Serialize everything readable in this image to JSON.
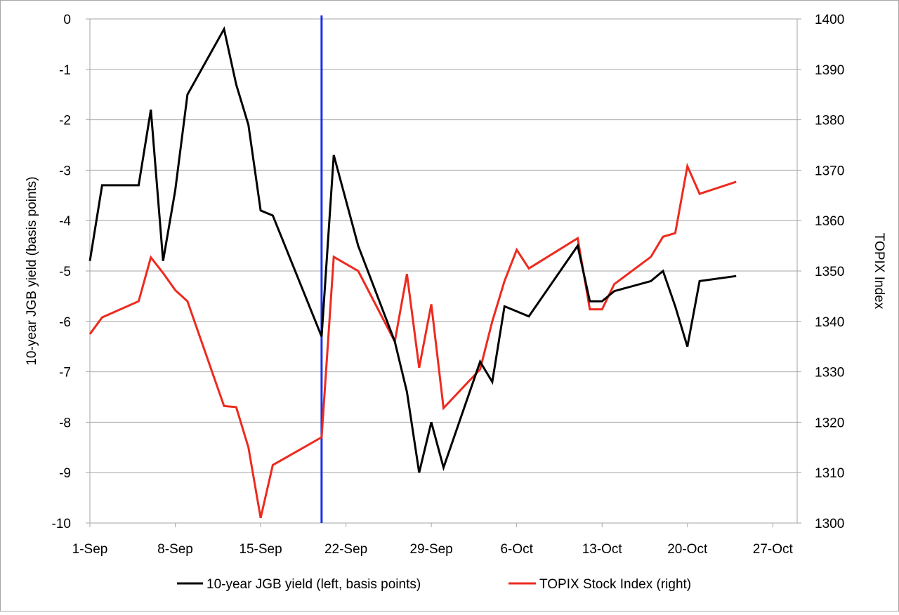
{
  "chart_data": {
    "type": "line",
    "title": "",
    "xlabel": "",
    "ylabel_left": "10-year JGB yield (basis points)",
    "ylabel_right": "TOPIX Index",
    "x_tick_labels": [
      "1-Sep",
      "8-Sep",
      "15-Sep",
      "22-Sep",
      "29-Sep",
      "6-Oct",
      "13-Oct",
      "20-Oct",
      "27-Oct"
    ],
    "xlim": [
      "1-Sep",
      "29-Oct"
    ],
    "ylim_left": [
      -10,
      0
    ],
    "ylim_right": [
      1300,
      1400
    ],
    "y_left_ticks": [
      "0",
      "-1",
      "-2",
      "-3",
      "-4",
      "-5",
      "-6",
      "-7",
      "-8",
      "-9",
      "-10"
    ],
    "y_right_ticks": [
      "1400",
      "1390",
      "1380",
      "1370",
      "1360",
      "1350",
      "1340",
      "1330",
      "1320",
      "1310",
      "1300"
    ],
    "grid": "horizontal",
    "legend_position": "bottom",
    "vertical_marker": {
      "x": "20-Sep",
      "color": "#1a32e6"
    },
    "series": [
      {
        "name": "10-year JGB yield (left, basis points)",
        "axis": "left",
        "color": "#000000",
        "points": [
          [
            "1-Sep",
            -4.8
          ],
          [
            "2-Sep",
            -3.3
          ],
          [
            "5-Sep",
            -3.3
          ],
          [
            "6-Sep",
            -1.8
          ],
          [
            "7-Sep",
            -4.8
          ],
          [
            "8-Sep",
            -3.4
          ],
          [
            "9-Sep",
            -1.5
          ],
          [
            "12-Sep",
            -0.2
          ],
          [
            "13-Sep",
            -1.3
          ],
          [
            "14-Sep",
            -2.1
          ],
          [
            "15-Sep",
            -3.8
          ],
          [
            "16-Sep",
            -3.9
          ],
          [
            "20-Sep",
            -6.3
          ],
          [
            "21-Sep",
            -2.7
          ],
          [
            "23-Sep",
            -4.5
          ],
          [
            "26-Sep",
            -6.4
          ],
          [
            "27-Sep",
            -7.4
          ],
          [
            "28-Sep",
            -9.0
          ],
          [
            "29-Sep",
            -8.0
          ],
          [
            "30-Sep",
            -8.9
          ],
          [
            "3-Oct",
            -6.8
          ],
          [
            "4-Oct",
            -7.2
          ],
          [
            "5-Oct",
            -5.7
          ],
          [
            "7-Oct",
            -5.9
          ],
          [
            "11-Oct",
            -4.5
          ],
          [
            "12-Oct",
            -5.6
          ],
          [
            "13-Oct",
            -5.6
          ],
          [
            "14-Oct",
            -5.4
          ],
          [
            "17-Oct",
            -5.2
          ],
          [
            "18-Oct",
            -5.0
          ],
          [
            "19-Oct",
            -5.7
          ],
          [
            "20-Oct",
            -6.5
          ],
          [
            "21-Oct",
            -5.2
          ],
          [
            "24-Oct",
            -5.1
          ]
        ]
      },
      {
        "name": "TOPIX Stock Index (right)",
        "axis": "right",
        "color": "#ee2a1f",
        "points": [
          [
            "1-Sep",
            1337.5
          ],
          [
            "2-Sep",
            1340.8
          ],
          [
            "5-Sep",
            1344.0
          ],
          [
            "6-Sep",
            1352.7
          ],
          [
            "7-Sep",
            1349.6
          ],
          [
            "8-Sep",
            1346.2
          ],
          [
            "9-Sep",
            1344.0
          ],
          [
            "12-Sep",
            1323.2
          ],
          [
            "13-Sep",
            1323.0
          ],
          [
            "14-Sep",
            1315.0
          ],
          [
            "15-Sep",
            1301.0
          ],
          [
            "16-Sep",
            1311.5
          ],
          [
            "20-Sep",
            1317.0
          ],
          [
            "21-Sep",
            1352.8
          ],
          [
            "23-Sep",
            1350.0
          ],
          [
            "26-Sep",
            1336.0
          ],
          [
            "27-Sep",
            1349.4
          ],
          [
            "28-Sep",
            1330.8
          ],
          [
            "29-Sep",
            1343.4
          ],
          [
            "30-Sep",
            1322.8
          ],
          [
            "3-Oct",
            1330.5
          ],
          [
            "4-Oct",
            1340.0
          ],
          [
            "5-Oct",
            1348.0
          ],
          [
            "6-Oct",
            1354.2
          ],
          [
            "7-Oct",
            1350.5
          ],
          [
            "11-Oct",
            1356.5
          ],
          [
            "12-Oct",
            1342.4
          ],
          [
            "13-Oct",
            1342.4
          ],
          [
            "14-Oct",
            1347.4
          ],
          [
            "17-Oct",
            1352.8
          ],
          [
            "18-Oct",
            1356.8
          ],
          [
            "19-Oct",
            1357.5
          ],
          [
            "20-Oct",
            1370.8
          ],
          [
            "21-Oct",
            1365.3
          ],
          [
            "24-Oct",
            1367.7
          ]
        ]
      }
    ]
  }
}
